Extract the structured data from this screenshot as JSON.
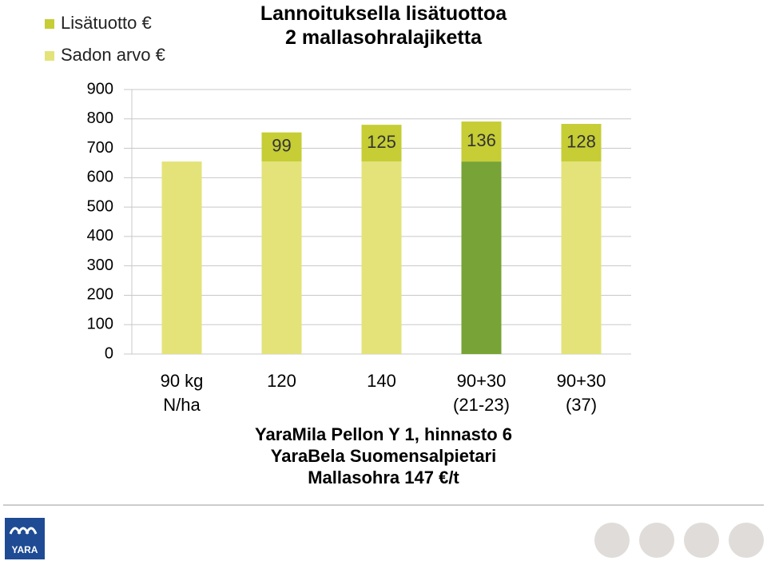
{
  "chart_data": {
    "type": "stacked_bar",
    "title": "Lannoituksella lisätuottoa\n2 mallasohralajiketta",
    "categories": [
      "90 kg\nN/ha",
      "120",
      "140",
      "90+30\n(21-23)",
      "90+30\n(37)"
    ],
    "series": [
      {
        "name": "Sadon arvo €",
        "color": "#e3e37a",
        "colors": [
          "#e3e37a",
          "#e3e37a",
          "#e3e37a",
          "#77a337",
          "#e3e37a"
        ],
        "values": [
          655,
          655,
          655,
          655,
          655
        ]
      },
      {
        "name": "Lisätuotto €",
        "color": "#c6cd35",
        "values": [
          null,
          99,
          125,
          136,
          128
        ]
      }
    ],
    "ylim": [
      0,
      900
    ],
    "yticks": [
      0,
      100,
      200,
      300,
      400,
      500,
      600,
      700,
      800,
      900
    ],
    "grid": true,
    "annotations": [
      "YaraMila Pellon Y 1, hinnasto 6",
      "YaraBela Suomensalpietari",
      "Mallasohra 147 €/t"
    ],
    "logo": "YARA"
  }
}
